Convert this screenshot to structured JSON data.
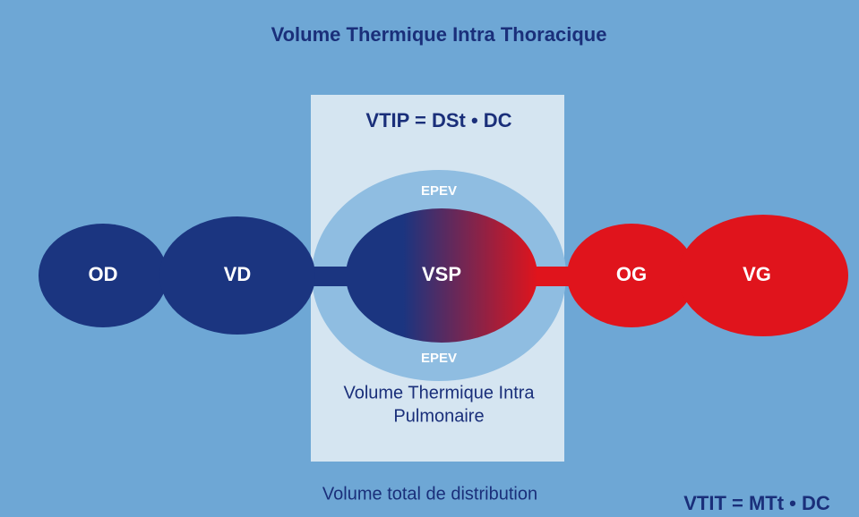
{
  "title": "Volume Thermique Intra Thoracique",
  "pulmonary_box": {
    "formula": "VTIP = DSt • DC",
    "epev_top": "EPEV",
    "epev_bottom": "EPEV",
    "caption": [
      "Volume Thermique Intra",
      "Pulmonaire"
    ]
  },
  "nodes": [
    {
      "label": "OD"
    },
    {
      "label": "VD"
    },
    {
      "label": "VSP"
    },
    {
      "label": "OG"
    },
    {
      "label": "VG"
    }
  ],
  "footer": {
    "caption": "Volume total de distribution",
    "formula": "VTIT = MTt • DC"
  }
}
